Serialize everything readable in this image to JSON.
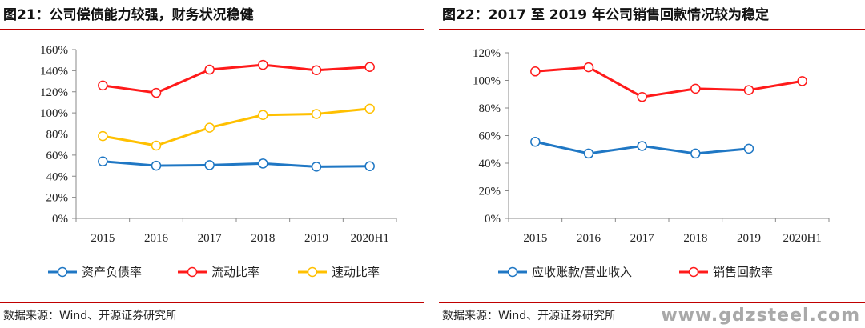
{
  "left_panel": {
    "title": "图21：公司偿债能力较强，财务状况稳健",
    "source": "数据来源：Wind、开源证券研究所"
  },
  "right_panel": {
    "title": "图22：2017 至 2019 年公司销售回款情况较为稳定",
    "source": "数据来源：Wind、开源证券研究所"
  },
  "watermark": "www.gdzsteel.com",
  "chart_data": [
    {
      "type": "line",
      "title": "",
      "xlabel": "",
      "ylabel": "",
      "categories": [
        "2015",
        "2016",
        "2017",
        "2018",
        "2019",
        "2020H1"
      ],
      "ylim": [
        0,
        160
      ],
      "yticks": [
        0,
        20,
        40,
        60,
        80,
        100,
        120,
        140,
        160
      ],
      "ytick_labels": [
        "0%",
        "20%",
        "40%",
        "60%",
        "80%",
        "100%",
        "120%",
        "140%",
        "160%"
      ],
      "unit": "%",
      "grid": false,
      "legend_position": "bottom",
      "series": [
        {
          "name": "资产负债率",
          "color": "#1f77c4",
          "values": [
            54,
            50,
            50.5,
            52,
            49,
            49.5
          ]
        },
        {
          "name": "流动比率",
          "color": "#ff1a1a",
          "values": [
            126,
            119,
            141,
            145.5,
            140.5,
            143.5
          ]
        },
        {
          "name": "速动比率",
          "color": "#ffc000",
          "values": [
            78,
            69,
            86,
            98,
            99,
            104
          ]
        }
      ]
    },
    {
      "type": "line",
      "title": "",
      "xlabel": "",
      "ylabel": "",
      "categories": [
        "2015",
        "2016",
        "2017",
        "2018",
        "2019",
        "2020H1"
      ],
      "ylim": [
        0,
        120
      ],
      "yticks": [
        0,
        20,
        40,
        60,
        80,
        100,
        120
      ],
      "ytick_labels": [
        "0%",
        "20%",
        "40%",
        "60%",
        "80%",
        "100%",
        "120%"
      ],
      "unit": "%",
      "grid": false,
      "legend_position": "bottom",
      "series": [
        {
          "name": "应收账款/营业收入",
          "color": "#1f77c4",
          "values": [
            55.5,
            47,
            52.5,
            47,
            50.5,
            null
          ]
        },
        {
          "name": "销售回款率",
          "color": "#ff1a1a",
          "values": [
            106.5,
            109.5,
            88,
            94,
            93,
            99.5
          ]
        }
      ]
    }
  ]
}
